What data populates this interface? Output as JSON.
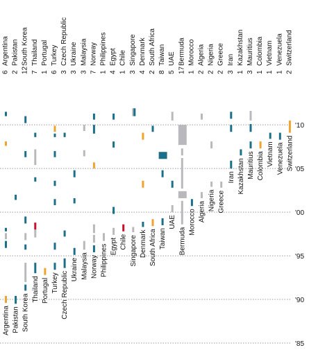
{
  "colors": {
    "teal": "#1b6f8a",
    "gray": "#b9b9bd",
    "orange": "#f0a330",
    "red": "#c8102e",
    "gridline": "#9a9a9a"
  },
  "chart_data": {
    "type": "timeline",
    "title": "",
    "x_categories": [
      "Argentina",
      "Pakistan",
      "South Korea",
      "Thailand",
      "Portugal",
      "Turkey",
      "Czech Republic",
      "Ukraine",
      "Malaysia",
      "Norway",
      "Philippines",
      "Egypt",
      "Chile",
      "Singapore",
      "Denmark",
      "South Africa",
      "Taiwan",
      "UAE",
      "Bermuda",
      "Morocco",
      "Algeria",
      "Nigeria",
      "Greece",
      "Iran",
      "Kazakhstan",
      "Mauritius",
      "Colombia",
      "Vietnam",
      "Venezuela",
      "Switzerland"
    ],
    "counts": [
      "6",
      "2",
      "12",
      "7",
      "1",
      "6",
      "3",
      "3",
      "3",
      "7",
      "1",
      "4",
      "1",
      "3",
      "4",
      "2",
      "8",
      "5",
      "17",
      "1",
      "2",
      "2",
      "2",
      "3",
      "1",
      "3",
      "1",
      "1",
      "1",
      "2"
    ],
    "y_axis": {
      "min": 1985,
      "max": 2012,
      "reversed": true,
      "ticks": [
        {
          "year": 2010,
          "label": "'10"
        },
        {
          "year": 2005,
          "label": "'05"
        },
        {
          "year": 2000,
          "label": "'00"
        },
        {
          "year": 1995,
          "label": "'95"
        },
        {
          "year": 1990,
          "label": "'90"
        },
        {
          "year": 1985,
          "label": "'85"
        }
      ]
    },
    "grid": true,
    "events": [
      {
        "country": "Argentina",
        "from": 2011.5,
        "to": 2011.0,
        "color": "teal"
      },
      {
        "country": "Argentina",
        "from": 2008.1,
        "to": 2007.6,
        "color": "orange"
      },
      {
        "country": "Argentina",
        "from": 1998.2,
        "to": 1997.8,
        "color": "teal"
      },
      {
        "country": "Argentina",
        "from": 1997.6,
        "to": 1996.9,
        "color": "gray"
      },
      {
        "country": "Argentina",
        "from": 1996.7,
        "to": 1995.9,
        "color": "teal"
      },
      {
        "country": "Argentina",
        "from": 1990.4,
        "to": 1989.6,
        "color": "orange"
      },
      {
        "country": "Pakistan",
        "from": 2002.0,
        "to": 2001.4,
        "color": "teal"
      },
      {
        "country": "Pakistan",
        "from": 1990.4,
        "to": 1989.5,
        "color": "teal"
      },
      {
        "country": "South Korea",
        "from": 2011.0,
        "to": 2010.2,
        "color": "teal"
      },
      {
        "country": "South Korea",
        "from": 2007.0,
        "to": 2006.3,
        "color": "teal"
      },
      {
        "country": "South Korea",
        "from": 1999.5,
        "to": 1998.7,
        "color": "teal"
      },
      {
        "country": "South Korea",
        "from": 1997.6,
        "to": 1996.8,
        "color": "gray"
      },
      {
        "country": "South Korea",
        "from": 1996.3,
        "to": 1995.7,
        "color": "teal"
      },
      {
        "country": "South Korea",
        "from": 1994.2,
        "to": 1992.0,
        "color": "gray"
      },
      {
        "country": "South Korea",
        "from": 1991.7,
        "to": 1991.0,
        "color": "teal"
      },
      {
        "country": "Thailand",
        "from": 2009.1,
        "to": 2008.6,
        "color": "teal"
      },
      {
        "country": "Thailand",
        "from": 2007.2,
        "to": 2005.4,
        "color": "gray"
      },
      {
        "country": "Thailand",
        "from": 2004.0,
        "to": 2003.5,
        "color": "teal"
      },
      {
        "country": "Thailand",
        "from": 1998.8,
        "to": 1998.0,
        "color": "red"
      },
      {
        "country": "Thailand",
        "from": 1998.0,
        "to": 1997.1,
        "color": "gray"
      },
      {
        "country": "Thailand",
        "from": 1994.2,
        "to": 1993.0,
        "color": "teal"
      },
      {
        "country": "Portugal",
        "from": 1993.6,
        "to": 1992.8,
        "color": "orange"
      },
      {
        "country": "Turkey",
        "from": 2009.9,
        "to": 2009.2,
        "color": "orange"
      },
      {
        "country": "Turkey",
        "from": 2009.0,
        "to": 2008.6,
        "color": "teal"
      },
      {
        "country": "Turkey",
        "from": 2007.0,
        "to": 2006.3,
        "color": "teal"
      },
      {
        "country": "Turkey",
        "from": 2003.6,
        "to": 2003.0,
        "color": "teal"
      },
      {
        "country": "Turkey",
        "from": 2001.5,
        "to": 2000.8,
        "color": "teal"
      },
      {
        "country": "Turkey",
        "from": 1996.5,
        "to": 1995.7,
        "color": "teal"
      },
      {
        "country": "Turkey",
        "from": 1994.2,
        "to": 1993.4,
        "color": "teal"
      },
      {
        "country": "Czech Republic",
        "from": 2009.1,
        "to": 2008.6,
        "color": "teal"
      },
      {
        "country": "Czech Republic",
        "from": 1997.9,
        "to": 1997.2,
        "color": "teal"
      },
      {
        "country": "Czech Republic",
        "from": 1994.7,
        "to": 1993.6,
        "color": "teal"
      },
      {
        "country": "Ukraine",
        "from": 2004.8,
        "to": 2004.0,
        "color": "teal"
      },
      {
        "country": "Ukraine",
        "from": 2001.6,
        "to": 2001.0,
        "color": "teal"
      },
      {
        "country": "Ukraine",
        "from": 1995.9,
        "to": 1995.1,
        "color": "teal"
      },
      {
        "country": "Malaysia",
        "from": 2010.0,
        "to": 2009.3,
        "color": "gray"
      },
      {
        "country": "Malaysia",
        "from": 2007.1,
        "to": 2006.4,
        "color": "gray"
      },
      {
        "country": "Malaysia",
        "from": 1996.7,
        "to": 1995.7,
        "color": "gray"
      },
      {
        "country": "Norway",
        "from": 2011.3,
        "to": 2010.6,
        "color": "teal"
      },
      {
        "country": "Norway",
        "from": 2010.0,
        "to": 2009.0,
        "color": "teal"
      },
      {
        "country": "Norway",
        "from": 2005.7,
        "to": 2005.0,
        "color": "orange"
      },
      {
        "country": "Norway",
        "from": 1998.6,
        "to": 1997.6,
        "color": "gray"
      },
      {
        "country": "Norway",
        "from": 1997.4,
        "to": 1996.5,
        "color": "gray"
      },
      {
        "country": "Norway",
        "from": 1996.2,
        "to": 1995.4,
        "color": "teal"
      },
      {
        "country": "Philippines",
        "from": 1997.6,
        "to": 1996.7,
        "color": "gray"
      },
      {
        "country": "Egypt",
        "from": 2011.3,
        "to": 2010.6,
        "color": "teal"
      },
      {
        "country": "Egypt",
        "from": 2008.1,
        "to": 2007.4,
        "color": "teal"
      },
      {
        "country": "Egypt",
        "from": 2000.6,
        "to": 1999.8,
        "color": "teal"
      },
      {
        "country": "Egypt",
        "from": 1998.2,
        "to": 1997.4,
        "color": "gray"
      },
      {
        "country": "Chile",
        "from": 1998.6,
        "to": 1997.8,
        "color": "red"
      },
      {
        "country": "Singapore",
        "from": 2011.9,
        "to": 2011.0,
        "color": "gray"
      },
      {
        "country": "Singapore",
        "from": 2011.9,
        "to": 2011.0,
        "color": "teal",
        "offset": 2
      },
      {
        "country": "Singapore",
        "from": 1998.3,
        "to": 1997.7,
        "color": "gray"
      },
      {
        "country": "Denmark",
        "from": 2009.1,
        "to": 2008.3,
        "color": "orange"
      },
      {
        "country": "Denmark",
        "from": 2003.6,
        "to": 2002.8,
        "color": "orange"
      },
      {
        "country": "Denmark",
        "from": 1998.9,
        "to": 1998.3,
        "color": "teal"
      },
      {
        "country": "South Africa",
        "from": 2009.9,
        "to": 2009.2,
        "color": "teal"
      },
      {
        "country": "South Africa",
        "from": 1999.2,
        "to": 1998.4,
        "color": "orange"
      },
      {
        "country": "Taiwan",
        "from": 2006.9,
        "to": 2006.1,
        "color": "teal",
        "wide": true
      },
      {
        "country": "Taiwan",
        "from": 2004.8,
        "to": 2004.0,
        "color": "teal"
      },
      {
        "country": "Taiwan",
        "from": 1999.3,
        "to": 1998.5,
        "color": "teal"
      },
      {
        "country": "UAE",
        "from": 2011.5,
        "to": 2010.5,
        "color": "gray"
      },
      {
        "country": "UAE",
        "from": 2003.6,
        "to": 2002.8,
        "color": "teal"
      },
      {
        "country": "UAE",
        "from": 2000.8,
        "to": 2000.0,
        "color": "gray"
      },
      {
        "country": "Bermuda",
        "from": 2010.0,
        "to": 2007.7,
        "color": "gray",
        "wide": true
      },
      {
        "country": "Bermuda",
        "from": 2007.3,
        "to": 2006.5,
        "color": "gray"
      },
      {
        "country": "Bermuda",
        "from": 2006.2,
        "to": 2002.7,
        "color": "gray"
      },
      {
        "country": "Bermuda",
        "from": 2002.4,
        "to": 2001.6,
        "color": "gray",
        "wide": true
      },
      {
        "country": "Bermuda",
        "from": 2001.3,
        "to": 1998.6,
        "color": "gray"
      },
      {
        "country": "Morocco",
        "from": 2001.5,
        "to": 2000.7,
        "color": "teal"
      },
      {
        "country": "Algeria",
        "from": 2011.3,
        "to": 2010.6,
        "color": "gray"
      },
      {
        "country": "Algeria",
        "from": 2002.3,
        "to": 2001.6,
        "color": "gray"
      },
      {
        "country": "Nigeria",
        "from": 2008.1,
        "to": 2007.3,
        "color": "gray"
      },
      {
        "country": "Nigeria",
        "from": 2003.5,
        "to": 2002.9,
        "color": "gray"
      },
      {
        "country": "Greece",
        "from": 2003.5,
        "to": 2002.8,
        "color": "gray"
      },
      {
        "country": "Iran",
        "from": 2011.5,
        "to": 2010.7,
        "color": "teal"
      },
      {
        "country": "Iran",
        "from": 2010.0,
        "to": 2009.2,
        "color": "teal"
      },
      {
        "country": "Iran",
        "from": 2005.9,
        "to": 2005.0,
        "color": "teal"
      },
      {
        "country": "Kazakhstan",
        "from": 2007.2,
        "to": 2006.5,
        "color": "teal"
      },
      {
        "country": "Mauritius",
        "from": 2011.6,
        "to": 2010.5,
        "color": "gray"
      },
      {
        "country": "Mauritius",
        "from": 2010.1,
        "to": 2009.2,
        "color": "teal"
      },
      {
        "country": "Mauritius",
        "from": 2008.1,
        "to": 2007.3,
        "color": "teal"
      },
      {
        "country": "Colombia",
        "from": 2008.1,
        "to": 2007.3,
        "color": "orange"
      },
      {
        "country": "Vietnam",
        "from": 2009.1,
        "to": 2008.4,
        "color": "teal"
      },
      {
        "country": "Venezuela",
        "from": 2009.1,
        "to": 2008.3,
        "color": "teal"
      },
      {
        "country": "Switzerland",
        "from": 2010.5,
        "to": 2009.1,
        "color": "orange"
      }
    ]
  }
}
